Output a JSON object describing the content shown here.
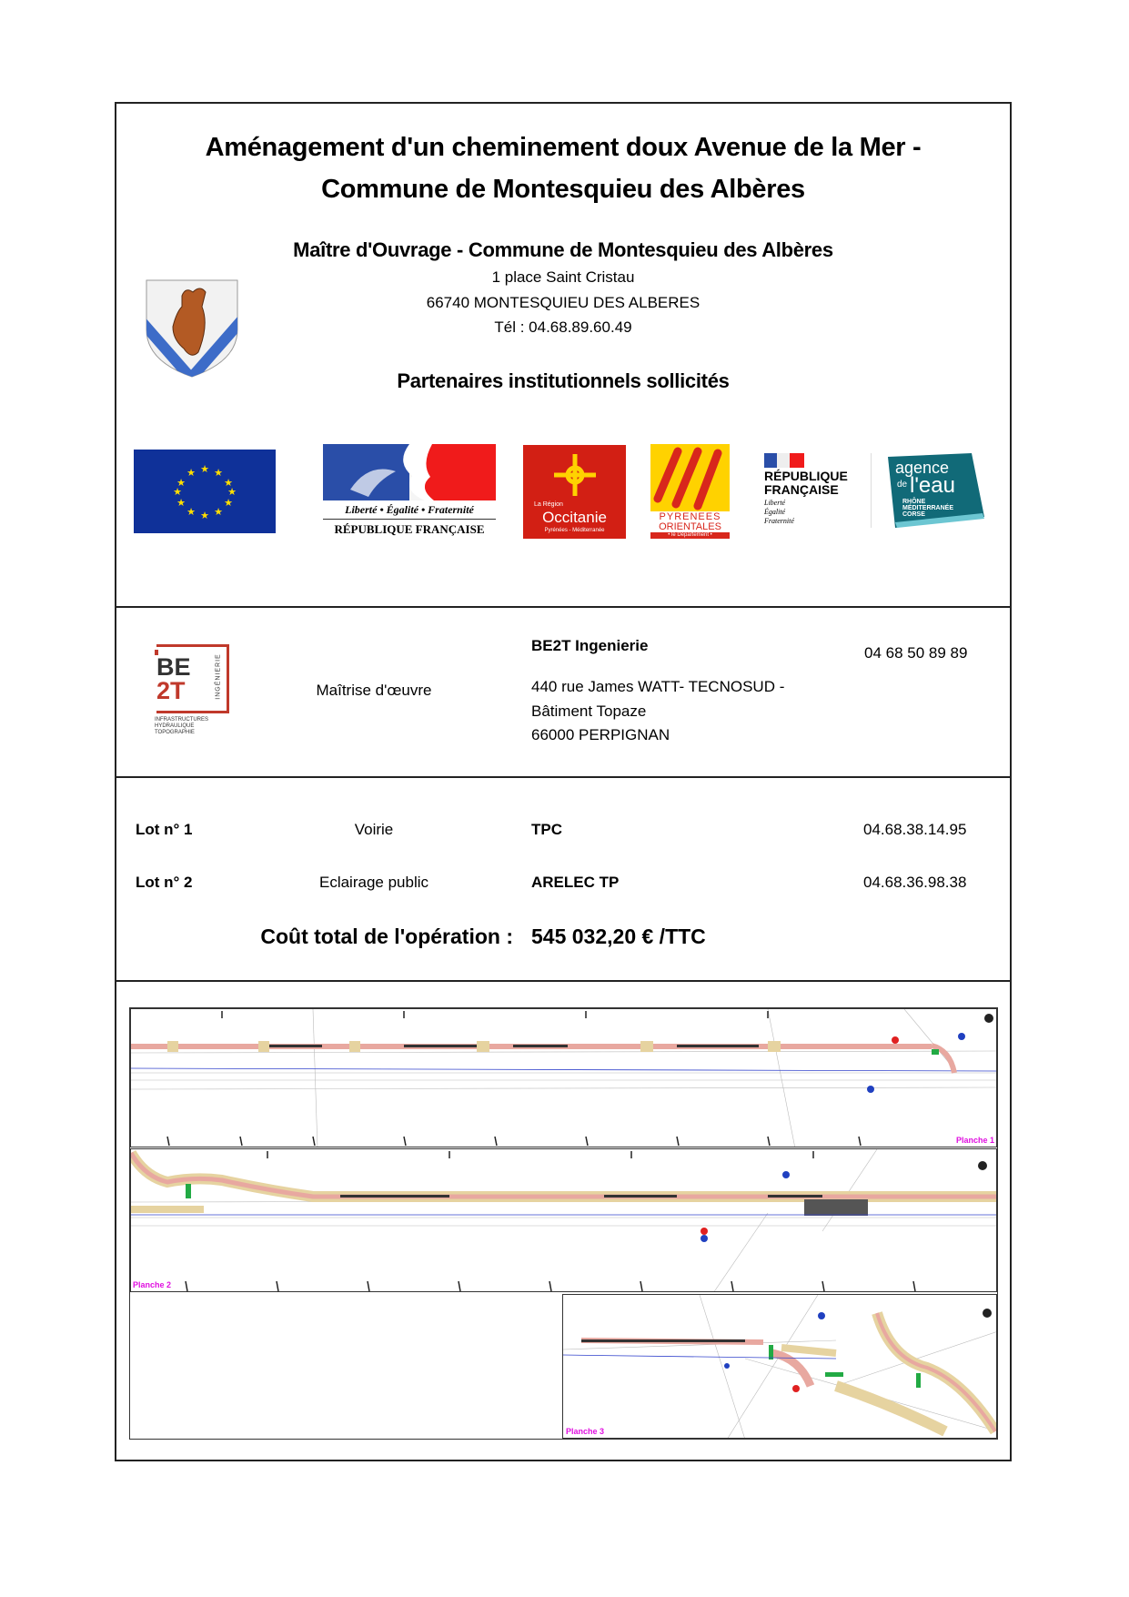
{
  "title": {
    "line1": "Aménagement d'un cheminement doux Avenue de la Mer -",
    "line2": "Commune de Montesquieu des Albères"
  },
  "maitre_ouvrage": {
    "heading": "Maître d'Ouvrage - Commune de Montesquieu des Albères",
    "address1": "1 place  Saint Cristau",
    "address2": "66740 MONTESQUIEU DES ALBERES",
    "phone": "Tél : 04.68.89.60.49"
  },
  "partners": {
    "heading": "Partenaires institutionnels sollicités",
    "logos": [
      {
        "name": "eu-flag",
        "colors": [
          "#0f3199",
          "#ffde00"
        ]
      },
      {
        "name": "marianne",
        "text1": "Liberté • Égalité • Fraternité",
        "text2": "RÉPUBLIQUE FRANÇAISE"
      },
      {
        "name": "occitanie",
        "text1": "La Région",
        "text2": "Occitanie",
        "text3": "Pyrénées - Méditerranée"
      },
      {
        "name": "pyrenees-orientales",
        "text1": "PYRENEES",
        "text2": "ORIENTALES",
        "text3": "• le Département •"
      },
      {
        "name": "republique-francaise",
        "text1": "RÉPUBLIQUE",
        "text2": "FRANÇAISE",
        "text3": "Liberté",
        "text4": "Égalité",
        "text5": "Fraternité"
      },
      {
        "name": "agence-eau",
        "text1": "agence",
        "text2": "de",
        "text3": "l'eau",
        "text4": "RHÔNE",
        "text5": "MÉDITERRANÉE",
        "text6": "CORSE"
      }
    ]
  },
  "maitrise": {
    "logo_text": {
      "a": "BE",
      "b": "2T",
      "side": "INGÉNIERIE",
      "sub1": "INFRASTRUCTURES",
      "sub2": "HYDRAULIQUE",
      "sub3": "TOPOGRAPHIE"
    },
    "role": "Maîtrise d'œuvre",
    "company": "BE2T Ingenierie",
    "phone": "04 68 50 89 89",
    "address1": "440 rue James WATT- TECNOSUD -",
    "address2": "Bâtiment Topaze",
    "address3": "66000 PERPIGNAN"
  },
  "lots": [
    {
      "lot": "Lot n° 1",
      "type": "Voirie",
      "company": "TPC",
      "phone": "04.68.38.14.95"
    },
    {
      "lot": "Lot n° 2",
      "type": "Eclairage public",
      "company": "ARELEC TP",
      "phone": "04.68.36.98.38"
    }
  ],
  "cost": {
    "label": "Coût total de l'opération :",
    "value": "545 032,20 € /TTC"
  },
  "plans": {
    "labels": [
      "Planche 1",
      "Planche 2",
      "Planche 3"
    ]
  }
}
